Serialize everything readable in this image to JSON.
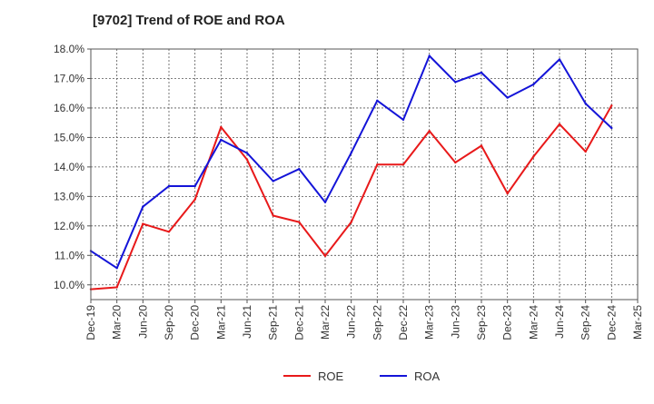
{
  "chart_data": {
    "type": "line",
    "title": "[9702]  Trend of ROE and ROA",
    "xlabel": "",
    "ylabel": "",
    "categories": [
      "Dec-19",
      "Mar-20",
      "Jun-20",
      "Sep-20",
      "Dec-20",
      "Mar-21",
      "Jun-21",
      "Sep-21",
      "Dec-21",
      "Mar-22",
      "Jun-22",
      "Sep-22",
      "Dec-22",
      "Mar-23",
      "Jun-23",
      "Sep-23",
      "Dec-23",
      "Mar-24",
      "Jun-24",
      "Sep-24",
      "Dec-24",
      "Mar-25"
    ],
    "y_tick_labels": [
      "10.0%",
      "11.0%",
      "12.0%",
      "13.0%",
      "14.0%",
      "15.0%",
      "16.0%",
      "17.0%",
      "18.0%"
    ],
    "ylim": [
      9.5,
      18.0
    ],
    "grid": true,
    "legend_position": "bottom-center",
    "series": [
      {
        "name": "ROE",
        "color": "#e8191a",
        "values": [
          9.85,
          9.92,
          12.07,
          11.8,
          12.9,
          15.35,
          14.25,
          12.35,
          12.13,
          10.98,
          12.13,
          14.08,
          14.08,
          15.22,
          14.15,
          14.72,
          13.1,
          14.35,
          15.45,
          14.52,
          16.08,
          null
        ]
      },
      {
        "name": "ROA",
        "color": "#1414d8",
        "values": [
          11.15,
          10.57,
          12.65,
          13.35,
          13.35,
          14.92,
          14.47,
          13.52,
          13.93,
          12.8,
          14.48,
          16.25,
          15.6,
          17.77,
          16.88,
          17.2,
          16.35,
          16.8,
          17.65,
          16.15,
          15.32,
          null
        ]
      }
    ]
  }
}
